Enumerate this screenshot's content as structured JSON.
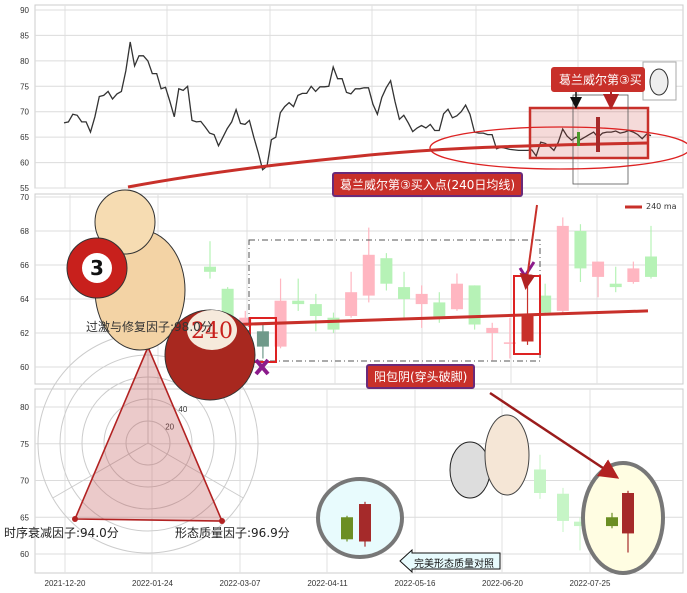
{
  "colors": {
    "ma": "#c8302a",
    "bull_light": "#ffb6c1",
    "bear_light": "#b6f2b6",
    "highlight_bear": "#6b8e23",
    "highlight_bull": "#a52a2a",
    "label_bg": "#c8302a",
    "label_border": "#6a2a7a"
  },
  "annotations": {
    "granville_short": "葛兰威尔第③买",
    "granville_full": "葛兰威尔第③买入点(240日均线)",
    "engulfing": "阳包阴(穿头破脚)",
    "compare": "完美形态质量对照",
    "ball_3": "3",
    "ball_240": "240"
  },
  "chart_data": [
    {
      "type": "line",
      "panel": "top",
      "ylim": [
        55,
        90
      ],
      "yticks": [
        55,
        60,
        65,
        70,
        75,
        80,
        85,
        90
      ],
      "grid": true,
      "series": [
        {
          "values": [
            67.8,
            68,
            69.5,
            69.3,
            68,
            68,
            66,
            69,
            73,
            73.2,
            74,
            72.5,
            73.5,
            74,
            78,
            83.7,
            79,
            81,
            81,
            80,
            77.5,
            77.5,
            74.5,
            74.8,
            72,
            69,
            74.5,
            74.2,
            75,
            68.3,
            68,
            68.1,
            67,
            65.8,
            65.5,
            63.3,
            65,
            66.7,
            68,
            70.4,
            67.7,
            67.5,
            68.3,
            65,
            62,
            58.6,
            59.3,
            64.5,
            65,
            69.8,
            71,
            71.8,
            71,
            73.2,
            73.6,
            73.6,
            75,
            74,
            74.9,
            74.9,
            75,
            78.8,
            76.5,
            76.5,
            73.8,
            73.5,
            74.5,
            74.5,
            74.7,
            74.7,
            71.5,
            69.5,
            72.8,
            74.7,
            76.1,
            72,
            68.5,
            69.3,
            67.8,
            66.1,
            66.8,
            67.3,
            66.8,
            67.5,
            66.3,
            66.3,
            69.6,
            70.5,
            68.8,
            69.2,
            70,
            71.3,
            69.5,
            66,
            65.8,
            65.8,
            65.5,
            65.5,
            62.7,
            63,
            62.8,
            62.6,
            62.5,
            62.4,
            62.4,
            62.4,
            62.5,
            61.3,
            64,
            63.8,
            63.2,
            62.4,
            64,
            66.6,
            65.2,
            64.4,
            65,
            64.5,
            65,
            65.5,
            66,
            65,
            65.8,
            66,
            66,
            66.2,
            65.8,
            66,
            66.3,
            66,
            65.5,
            64.7,
            65.6,
            65.3
          ]
        }
      ]
    },
    {
      "type": "candlestick",
      "panel": "middle",
      "ylim": [
        59.5,
        70
      ],
      "yticks": [
        60,
        62,
        64,
        66,
        68,
        70
      ],
      "grid": true,
      "legend": {
        "label": "240 ma",
        "position": "top-right"
      },
      "candles": [
        {
          "open": 65.9,
          "close": 65.6,
          "high": 67.4,
          "low": 65.2
        },
        {
          "open": 64.6,
          "close": 62.6,
          "high": 64.7,
          "low": 62.5
        },
        {
          "open": 62.4,
          "close": 62.9,
          "high": 63.3,
          "low": 62.2
        },
        {
          "open": 62.1,
          "close": 61.2,
          "high": 62.6,
          "low": 60.5,
          "highlight": "bear"
        },
        {
          "open": 61.2,
          "close": 63.9,
          "high": 65.2,
          "low": 61.1
        },
        {
          "open": 63.9,
          "close": 63.7,
          "high": 65.2,
          "low": 63.3
        },
        {
          "open": 63.7,
          "close": 63.0,
          "high": 64.3,
          "low": 62.1
        },
        {
          "open": 62.9,
          "close": 62.2,
          "high": 63.2,
          "low": 62.0
        },
        {
          "open": 63.0,
          "close": 64.4,
          "high": 65.6,
          "low": 62.9
        },
        {
          "open": 64.2,
          "close": 66.6,
          "high": 68.2,
          "low": 63.8
        },
        {
          "open": 66.4,
          "close": 64.9,
          "high": 66.7,
          "low": 64.5
        },
        {
          "open": 64.7,
          "close": 64.0,
          "high": 65.6,
          "low": 62.8
        },
        {
          "open": 63.7,
          "close": 64.3,
          "high": 64.8,
          "low": 62.3
        },
        {
          "open": 63.8,
          "close": 62.9,
          "high": 64.4,
          "low": 62.6
        },
        {
          "open": 63.4,
          "close": 64.9,
          "high": 65.5,
          "low": 63.3
        },
        {
          "open": 64.8,
          "close": 62.5,
          "high": 64.8,
          "low": 62.2
        },
        {
          "open": 62.0,
          "close": 62.3,
          "high": 62.6,
          "low": 60.4
        },
        {
          "open": 61.4,
          "close": 61.45,
          "high": 62.9,
          "low": 60.5
        },
        {
          "open": 61.5,
          "close": 63.1,
          "high": 65.6,
          "low": 61.3,
          "highlight": "bull"
        },
        {
          "open": 64.2,
          "close": 63.2,
          "high": 64.9,
          "low": 63.1
        },
        {
          "open": 63.3,
          "close": 68.3,
          "high": 68.8,
          "low": 63.2
        },
        {
          "open": 68.0,
          "close": 65.8,
          "high": 68.4,
          "low": 65.0
        },
        {
          "open": 65.3,
          "close": 66.2,
          "high": 66.2,
          "low": 64.1
        },
        {
          "open": 64.9,
          "close": 64.7,
          "high": 65.9,
          "low": 64.4
        },
        {
          "open": 65.0,
          "close": 65.8,
          "high": 66.2,
          "low": 64.9
        },
        {
          "open": 66.5,
          "close": 65.3,
          "high": 68.3,
          "low": 65.2
        }
      ],
      "ma240": {
        "start": 62.5,
        "end": 63.3
      }
    },
    {
      "type": "candlestick",
      "panel": "bottom",
      "ylim": [
        57,
        82
      ],
      "yticks": [
        60,
        65,
        70,
        75,
        80
      ],
      "grid": true,
      "xticks": [
        "2021-12-20",
        "2022-01-24",
        "2022-03-07",
        "2022-04-11",
        "2022-05-16",
        "2022-06-20",
        "2022-07-25"
      ],
      "reference_pattern": [
        {
          "open": 65.0,
          "close": 62.0,
          "high": 65.2,
          "low": 61.7
        },
        {
          "open": 61.7,
          "close": 66.8,
          "high": 67.1,
          "low": 61.0
        }
      ],
      "actual_pattern": [
        {
          "open": 65.0,
          "close": 63.8,
          "high": 65.6,
          "low": 63.5
        },
        {
          "open": 62.8,
          "close": 68.3,
          "high": 68.6,
          "low": 60.2
        }
      ],
      "background_candles": [
        {
          "open": 71.5,
          "close": 68.3,
          "high": 73.5,
          "low": 67.5
        },
        {
          "open": 68.2,
          "close": 64.5,
          "high": 69.0,
          "low": 63.0
        },
        {
          "open": 64.4,
          "close": 63.8,
          "high": 65.0,
          "low": 60.5
        },
        {
          "open": 63.8,
          "close": 64.4,
          "high": 66.5,
          "low": 61.5
        },
        {
          "open": 67.0,
          "close": 63.0,
          "high": 68.0,
          "low": 62.5
        }
      ]
    },
    {
      "type": "radar",
      "rticks": [
        20,
        40,
        60,
        80,
        100
      ],
      "axes": [
        {
          "label": "过激与修复因子:98.0分",
          "value": 98.0
        },
        {
          "label": "时序衰减因子:94.0分",
          "value": 94.0
        },
        {
          "label": "形态质量因子:96.9分",
          "value": 96.9
        }
      ]
    }
  ]
}
